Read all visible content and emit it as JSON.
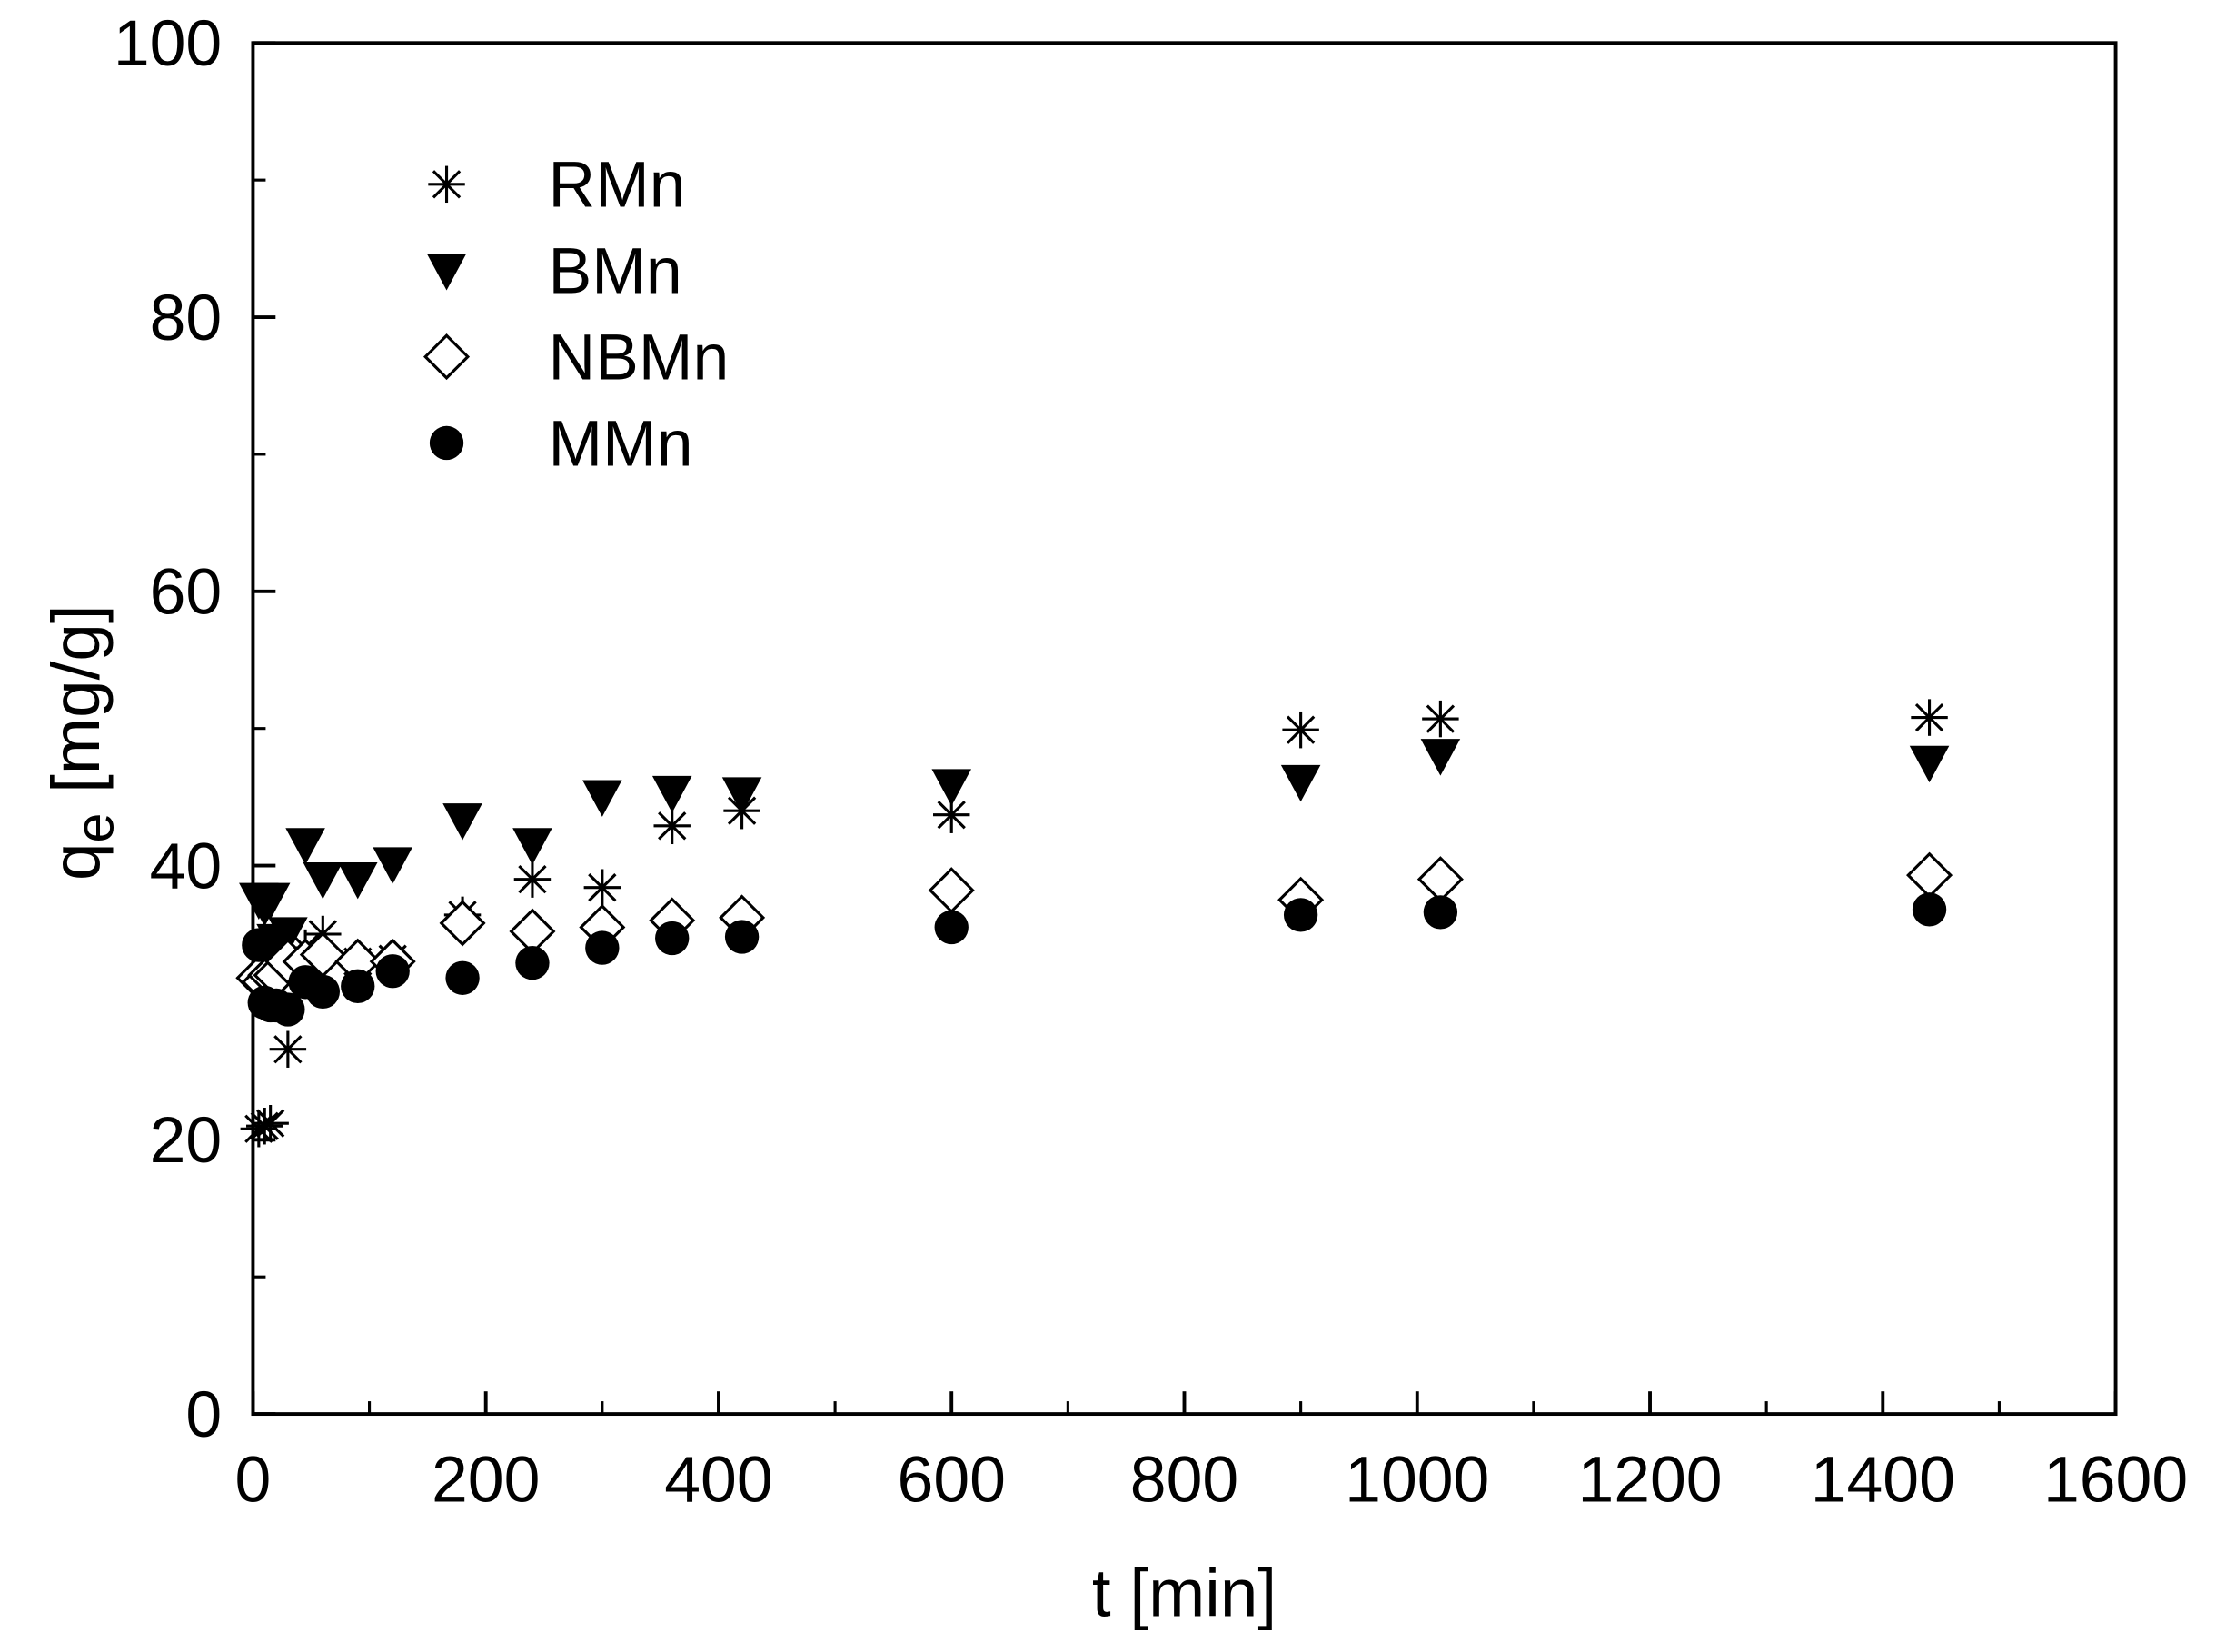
{
  "chart_data": {
    "type": "scatter",
    "xlabel": "t [min]",
    "ylabel_symbol": "q",
    "ylabel_subscript": "e",
    "ylabel_unit": "[mg/g]",
    "x": [
      5,
      10,
      15,
      20,
      30,
      45,
      60,
      90,
      120,
      180,
      240,
      300,
      360,
      420,
      600,
      900,
      1020,
      1440
    ],
    "series": [
      {
        "name": "RMn",
        "color": "#000000",
        "marker": "asterisk",
        "values": [
          20.8,
          21.0,
          21.2,
          30.5,
          26.6,
          34.0,
          35.0,
          33.0,
          33.2,
          36.4,
          39.0,
          38.4,
          42.9,
          44.0,
          43.7,
          49.9,
          50.7,
          50.8
        ]
      },
      {
        "name": "BMn",
        "color": "#000000",
        "marker": "triangle-down",
        "values": [
          37.5,
          37.0,
          37.5,
          34.5,
          35.0,
          41.5,
          39.0,
          39.0,
          40.1,
          43.3,
          41.5,
          45.0,
          45.3,
          45.2,
          45.8,
          46.1,
          48.0,
          47.5
        ]
      },
      {
        "name": "NBMn",
        "color": "#000000",
        "marker": "diamond-open",
        "values": [
          31.8,
          31.5,
          32.0,
          32.0,
          33.0,
          33.0,
          33.5,
          33.0,
          33.0,
          35.8,
          35.2,
          35.5,
          36.0,
          36.2,
          38.2,
          37.5,
          39.0,
          39.3
        ]
      },
      {
        "name": "MMn",
        "color": "#000000",
        "marker": "circle",
        "values": [
          34.2,
          30.0,
          29.8,
          29.8,
          29.5,
          31.5,
          30.8,
          31.2,
          32.3,
          31.8,
          32.9,
          34.0,
          34.7,
          34.8,
          35.5,
          36.4,
          36.6,
          36.8
        ]
      }
    ],
    "xlim": [
      0,
      1600
    ],
    "xticks": [
      0,
      200,
      400,
      600,
      800,
      1000,
      1200,
      1400,
      1600
    ],
    "ylim": [
      0,
      100
    ],
    "yticks": [
      0,
      20,
      40,
      60,
      80,
      100
    ],
    "grid": false,
    "legend": "upper left"
  }
}
